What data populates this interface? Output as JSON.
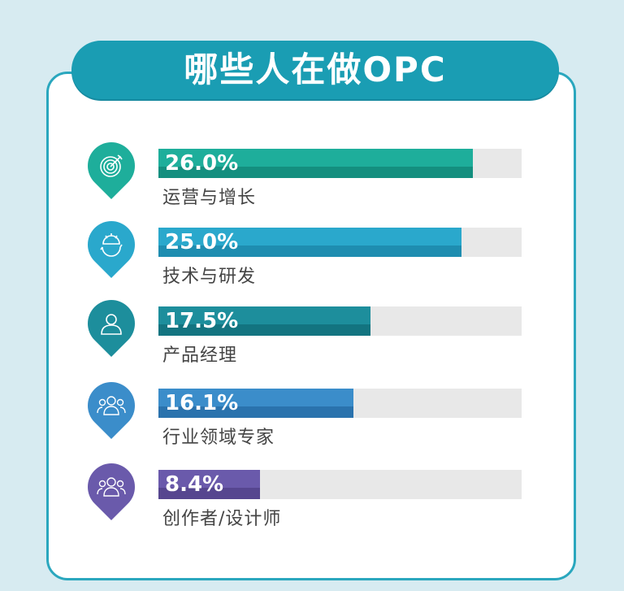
{
  "title": "哪些人在做OPC",
  "chart_data": {
    "type": "bar",
    "orientation": "horizontal",
    "title": "哪些人在做OPC",
    "categories": [
      "运营与增长",
      "技术与研发",
      "产品经理",
      "行业领域专家",
      "创作者/设计师"
    ],
    "values": [
      26.0,
      25.0,
      17.5,
      16.1,
      8.4
    ],
    "value_labels": [
      "26.0%",
      "25.0%",
      "17.5%",
      "16.1%",
      "8.4%"
    ],
    "unit": "%",
    "xlim": [
      0,
      30
    ],
    "grid": false,
    "colors": [
      [
        "#1eae9b",
        "#148f7f"
      ],
      [
        "#2aa8cc",
        "#1e8db0"
      ],
      [
        "#1d8e9c",
        "#137480"
      ],
      [
        "#3b8dca",
        "#2a72ad"
      ],
      [
        "#6a5aab",
        "#56468f"
      ]
    ],
    "icons": [
      "target-icon",
      "gear-refresh-icon",
      "person-icon",
      "group-icon",
      "group-icon"
    ]
  }
}
